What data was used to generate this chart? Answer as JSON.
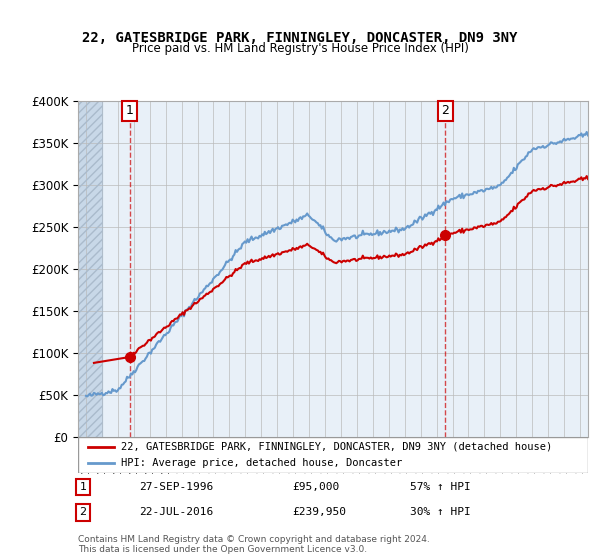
{
  "title": "22, GATESBRIDGE PARK, FINNINGLEY, DONCASTER, DN9 3NY",
  "subtitle": "Price paid vs. HM Land Registry's House Price Index (HPI)",
  "legend_label_red": "22, GATESBRIDGE PARK, FINNINGLEY, DONCASTER, DN9 3NY (detached house)",
  "legend_label_blue": "HPI: Average price, detached house, Doncaster",
  "annotation1_label": "1",
  "annotation1_date": "27-SEP-1996",
  "annotation1_price": "£95,000",
  "annotation1_hpi": "57% ↑ HPI",
  "annotation2_label": "2",
  "annotation2_date": "22-JUL-2016",
  "annotation2_price": "£239,950",
  "annotation2_hpi": "30% ↑ HPI",
  "footnote": "Contains HM Land Registry data © Crown copyright and database right 2024.\nThis data is licensed under the Open Government Licence v3.0.",
  "sale1_year": 1996.74,
  "sale1_price": 95000,
  "sale2_year": 2016.55,
  "sale2_price": 239950,
  "ylim": [
    0,
    400000
  ],
  "xlim_start": 1993.5,
  "xlim_end": 2025.5,
  "hatch_end_year": 1995.0,
  "bg_color": "#e8f0f8",
  "hatch_color": "#c8d8e8",
  "red_color": "#cc0000",
  "blue_color": "#6699cc",
  "grid_color": "#bbbbbb"
}
